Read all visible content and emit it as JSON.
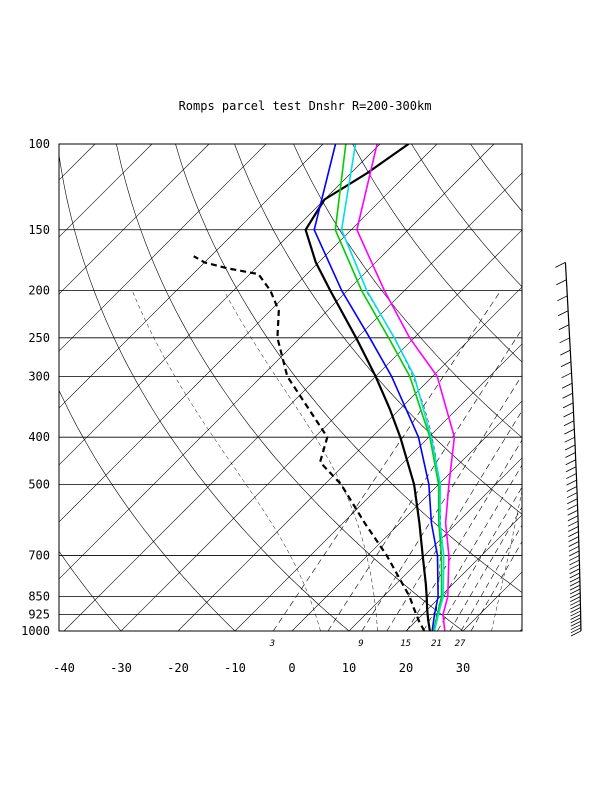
{
  "chart_data": {
    "type": "line",
    "title": "Romps parcel test Dnshr R=200-300km",
    "y_scale": "log-pressure",
    "y_ticks": [
      100,
      150,
      200,
      250,
      300,
      400,
      500,
      700,
      850,
      925,
      1000
    ],
    "x_ticks": [
      -40,
      -30,
      -20,
      -10,
      0,
      10,
      20,
      30
    ],
    "mixing_ratio_labels": [
      "3",
      "9",
      "15",
      "21",
      "27"
    ],
    "grid": true,
    "series": [
      {
        "color": "#000000",
        "style": "solid",
        "points": [
          [
            1000,
            24.2
          ],
          [
            950,
            22.0
          ],
          [
            900,
            19.8
          ],
          [
            850,
            17.6
          ],
          [
            800,
            15.2
          ],
          [
            700,
            9.7
          ],
          [
            600,
            3.4
          ],
          [
            500,
            -4.3
          ],
          [
            400,
            -15.0
          ],
          [
            350,
            -21.8
          ],
          [
            300,
            -30.0
          ],
          [
            250,
            -40.2
          ],
          [
            200,
            -53.0
          ],
          [
            175,
            -60.5
          ],
          [
            150,
            -68.0
          ],
          [
            130,
            -70.0
          ],
          [
            115,
            -67.2
          ],
          [
            100,
            -65.0
          ]
        ]
      },
      {
        "color": "#000000",
        "style": "dashed",
        "points": [
          [
            1000,
            23.2
          ],
          [
            950,
            20.3
          ],
          [
            900,
            17.5
          ],
          [
            850,
            14.6
          ],
          [
            700,
            3.4
          ],
          [
            600,
            -6.2
          ],
          [
            500,
            -17.1
          ],
          [
            450,
            -24.7
          ],
          [
            400,
            -27.8
          ],
          [
            350,
            -36.0
          ],
          [
            300,
            -45.5
          ],
          [
            250,
            -54.0
          ],
          [
            220,
            -58.5
          ],
          [
            200,
            -63.5
          ],
          [
            185,
            -68.5
          ],
          [
            180,
            -75.0
          ],
          [
            175,
            -80.0
          ],
          [
            170,
            -83.0
          ]
        ]
      },
      {
        "color": "#0000ff",
        "style": "solid",
        "points": [
          [
            1000,
            24.6
          ],
          [
            925,
            22.1
          ],
          [
            850,
            19.6
          ],
          [
            700,
            12.3
          ],
          [
            600,
            5.5
          ],
          [
            500,
            -1.7
          ],
          [
            400,
            -11.8
          ],
          [
            300,
            -27.2
          ],
          [
            250,
            -37.8
          ],
          [
            200,
            -51.0
          ],
          [
            150,
            -66.5
          ],
          [
            100,
            -77.8
          ]
        ]
      },
      {
        "color": "#00cc00",
        "style": "solid",
        "points": [
          [
            1000,
            24.8
          ],
          [
            925,
            22.6
          ],
          [
            850,
            20.2
          ],
          [
            700,
            13.0
          ],
          [
            600,
            6.8
          ],
          [
            500,
            0.0
          ],
          [
            400,
            -9.8
          ],
          [
            300,
            -24.0
          ],
          [
            250,
            -34.5
          ],
          [
            200,
            -47.5
          ],
          [
            150,
            -62.8
          ],
          [
            100,
            -76.0
          ]
        ]
      },
      {
        "color": "#00e0e0",
        "style": "solid",
        "points": [
          [
            1000,
            25.0
          ],
          [
            925,
            22.8
          ],
          [
            850,
            20.5
          ],
          [
            700,
            13.4
          ],
          [
            600,
            7.0
          ],
          [
            500,
            0.3
          ],
          [
            400,
            -9.6
          ],
          [
            300,
            -23.2
          ],
          [
            250,
            -33.5
          ],
          [
            200,
            -46.6
          ],
          [
            150,
            -61.7
          ],
          [
            100,
            -74.3
          ]
        ]
      },
      {
        "color": "#ff00ff",
        "style": "solid",
        "points": [
          [
            1000,
            26.8
          ],
          [
            925,
            23.6
          ],
          [
            850,
            21.3
          ],
          [
            700,
            14.3
          ],
          [
            600,
            8.0
          ],
          [
            500,
            1.8
          ],
          [
            400,
            -5.5
          ],
          [
            300,
            -19.2
          ],
          [
            250,
            -30.8
          ],
          [
            200,
            -43.5
          ],
          [
            150,
            -59.0
          ],
          [
            100,
            -70.5
          ]
        ]
      }
    ]
  }
}
